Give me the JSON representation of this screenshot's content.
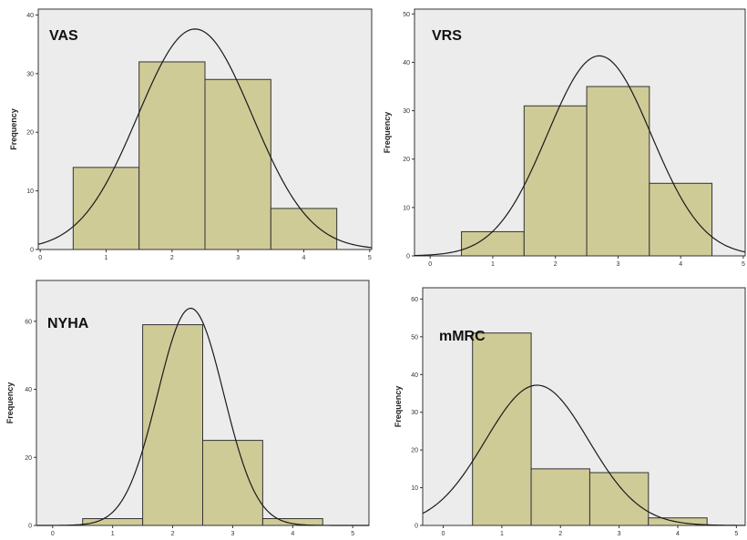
{
  "chart_data": [
    {
      "type": "bar",
      "title": "VAS",
      "ylabel": "Frequency",
      "xlim": [
        -0.03,
        5.03
      ],
      "ylim": [
        0,
        41
      ],
      "xticks": [
        "0",
        "1",
        "2",
        "3",
        "4",
        "5"
      ],
      "yticks": [
        0,
        10,
        20,
        30,
        40
      ],
      "bin_width": 1,
      "x": [
        1,
        2,
        3,
        4
      ],
      "values": [
        14,
        32,
        29,
        7
      ],
      "curve": {
        "mean": 2.35,
        "sd": 0.87,
        "n": 82
      }
    },
    {
      "type": "bar",
      "title": "VRS",
      "ylabel": "Frequency",
      "xlim": [
        -0.25,
        5.03
      ],
      "ylim": [
        0,
        51
      ],
      "xticks": [
        "0",
        "1",
        "2",
        "3",
        "4",
        "5"
      ],
      "yticks": [
        0,
        10,
        20,
        30,
        40,
        50
      ],
      "bin_width": 1,
      "x": [
        1,
        2,
        3,
        4
      ],
      "values": [
        5,
        31,
        35,
        15
      ],
      "curve": {
        "mean": 2.7,
        "sd": 0.83,
        "n": 86
      }
    },
    {
      "type": "bar",
      "title": "NYHA",
      "ylabel": "Frequency",
      "xlim": [
        -0.27,
        5.27
      ],
      "ylim": [
        0,
        72
      ],
      "xticks": [
        "0",
        "1",
        "2",
        "3",
        "4",
        "5"
      ],
      "yticks": [
        0,
        20,
        40,
        60
      ],
      "bin_width": 1,
      "x": [
        1,
        2,
        3,
        4
      ],
      "values": [
        2,
        59,
        25,
        2
      ],
      "curve": {
        "mean": 2.3,
        "sd": 0.55,
        "n": 88
      }
    },
    {
      "type": "bar",
      "title": "mMRC",
      "ylabel": "Frequency",
      "xlim": [
        -0.35,
        5.15
      ],
      "ylim": [
        0,
        63
      ],
      "xticks": [
        "0",
        "1",
        "2",
        "3",
        "4",
        "5"
      ],
      "yticks": [
        0,
        10,
        20,
        30,
        40,
        50,
        60
      ],
      "bin_width": 1,
      "x": [
        1,
        2,
        3,
        4
      ],
      "values": [
        51,
        15,
        14,
        2
      ],
      "curve": {
        "mean": 1.6,
        "sd": 0.88,
        "n": 82
      }
    }
  ]
}
